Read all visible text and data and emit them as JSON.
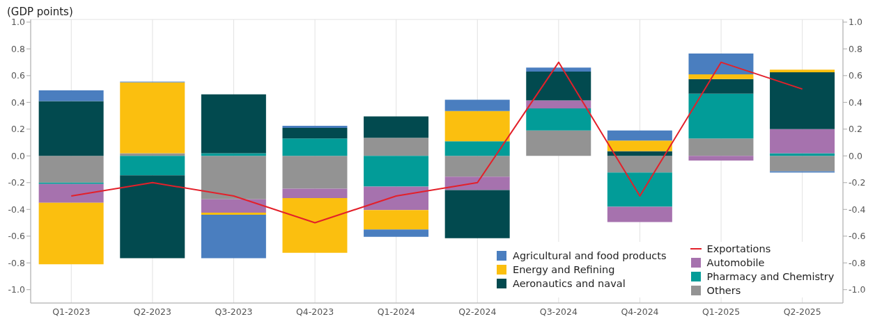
{
  "chart_data": {
    "type": "bar",
    "title": "(GDP points)",
    "stacked": true,
    "grid": true,
    "legend": "bottom right",
    "marker": "none",
    "line_style": "solid",
    "categories": [
      "Q1-2023",
      "Q2-2023",
      "Q3-2023",
      "Q4-2023",
      "Q1-2024",
      "Q2-2024",
      "Q3-2024",
      "Q4-2024",
      "Q1-2025",
      "Q2-2025"
    ],
    "ylim": [
      -1.1,
      1.02
    ],
    "yticks": [
      {
        "value": -1,
        "label": "-1.0"
      },
      {
        "value": -0.8,
        "label": "-0.8"
      },
      {
        "value": -0.6,
        "label": "-0.6"
      },
      {
        "value": -0.4,
        "label": "-0.4"
      },
      {
        "value": -0.2,
        "label": "-0.2"
      },
      {
        "value": 0,
        "label": "0.0"
      },
      {
        "value": 0.2,
        "label": "0.2"
      },
      {
        "value": 0.4,
        "label": "0.4"
      },
      {
        "value": 0.6,
        "label": "0.6"
      },
      {
        "value": 0.8,
        "label": "0.8"
      },
      {
        "value": 1,
        "label": "1.0"
      }
    ],
    "y2lim": [
      -1.1,
      1.02
    ],
    "y2ticks": [
      {
        "value": -1,
        "label": "-1.0"
      },
      {
        "value": -0.8,
        "label": "-0.8"
      },
      {
        "value": -0.6,
        "label": "-0.6"
      },
      {
        "value": -0.4,
        "label": "-0.4"
      },
      {
        "value": -0.2,
        "label": "-0.2"
      },
      {
        "value": 0,
        "label": "0.0"
      },
      {
        "value": 0.2,
        "label": "0.2"
      },
      {
        "value": 0.4,
        "label": "0.4"
      },
      {
        "value": 0.6,
        "label": "0.6"
      },
      {
        "value": 0.8,
        "label": "0.8"
      },
      {
        "value": 1,
        "label": "1.0"
      }
    ],
    "series": [
      {
        "name": "Others",
        "color": "#939393",
        "values": [
          -0.2,
          0.02,
          -0.325,
          -0.245,
          0.135,
          -0.155,
          0.19,
          -0.125,
          0.13,
          -0.115
        ]
      },
      {
        "name": "Pharmacy and Chemistry",
        "color": "#029c98",
        "values": [
          -0.01,
          -0.145,
          0.02,
          0.13,
          -0.23,
          0.11,
          0.165,
          -0.255,
          0.335,
          0.02
        ]
      },
      {
        "name": "Automobile",
        "color": "#a672ae",
        "values": [
          -0.14,
          0,
          -0.1,
          -0.07,
          -0.175,
          -0.1,
          0.06,
          -0.115,
          -0.035,
          0.18
        ]
      },
      {
        "name": "Aeronautics and naval",
        "color": "#024a4f",
        "values": [
          0.41,
          -0.62,
          0.44,
          0.08,
          0.16,
          -0.36,
          0.215,
          0.035,
          0.11,
          0.425
        ]
      },
      {
        "name": "Energy and Refining",
        "color": "#fbbf0f",
        "values": [
          -0.46,
          0.53,
          -0.015,
          -0.41,
          -0.145,
          0.225,
          0,
          0.08,
          0.035,
          0.02
        ]
      },
      {
        "name": "Agricultural and food products",
        "color": "#4a7ebf",
        "values": [
          0.08,
          0.005,
          -0.325,
          0.015,
          -0.055,
          0.085,
          0.03,
          0.075,
          0.155,
          -0.01
        ]
      },
      {
        "type": "line",
        "name": "Exportations",
        "color": "#e3202a",
        "values": [
          -0.3,
          -0.2,
          -0.3,
          -0.5,
          -0.3,
          -0.2,
          0.7,
          -0.3,
          0.7,
          0.5
        ]
      }
    ]
  }
}
